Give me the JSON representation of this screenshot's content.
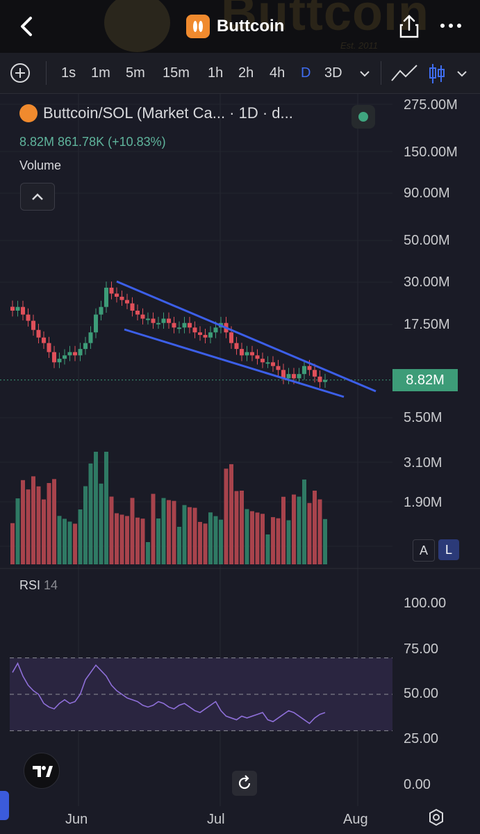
{
  "header": {
    "title": "Buttcoin",
    "watermark": "Buttcoin",
    "watermark_sub": "Est. 2011",
    "icons": [
      "back-arrow-icon",
      "token-icon",
      "share-icon",
      "more-dots-icon"
    ]
  },
  "toolbar": {
    "intervals": [
      "1s",
      "1m",
      "5m",
      "15m",
      "1h",
      "2h",
      "4h",
      "D",
      "3D"
    ],
    "active_interval": "D"
  },
  "legend": {
    "symbol": "Buttcoin/SOL (Market Ca... · 1D · d...",
    "ohlc": "8.82M  861.78K (+10.83%)",
    "volume_label": "Volume"
  },
  "price_axis": [
    "275.00M",
    "150.00M",
    "90.00M",
    "50.00M",
    "30.00M",
    "17.50M",
    "5.50M",
    "3.10M",
    "1.90M"
  ],
  "current_price": "8.82M",
  "scale_buttons": {
    "auto": "A",
    "log": "L"
  },
  "rsi": {
    "label": "RSI",
    "period": "14",
    "axis": [
      "100.00",
      "75.00",
      "50.00",
      "25.00",
      "0.00"
    ]
  },
  "time_axis": [
    "Jun",
    "Jul",
    "Aug"
  ],
  "colors": {
    "up": "#3d9c78",
    "down": "#e0505a",
    "trendline": "#3c5fe8",
    "rsi_line": "#8e6fd8",
    "rsi_band": "#2a2540",
    "active": "#3f6df0"
  },
  "chart_data": {
    "type": "candlestick",
    "title": "Buttcoin/SOL (Market Ca...",
    "y_scale": "log",
    "y_ticks": [
      "275.00M",
      "150.00M",
      "90.00M",
      "50.00M",
      "30.00M",
      "17.50M",
      "5.50M",
      "3.10M",
      "1.90M"
    ],
    "x_ticks": [
      "Jun",
      "Jul",
      "Aug"
    ],
    "last_value": "8.82M",
    "change": "861.78K (+10.83%)",
    "approx_close_series_M": [
      21,
      22,
      20,
      18.5,
      16.5,
      15,
      14,
      12.5,
      11,
      11.5,
      12,
      12.5,
      12,
      13,
      14,
      16,
      20,
      22,
      28,
      26,
      25,
      24,
      23,
      21,
      20,
      19,
      19,
      18,
      18,
      19,
      18,
      17,
      17,
      18,
      17,
      16,
      15.5,
      15,
      16,
      17,
      18,
      16,
      14,
      13,
      12,
      12.5,
      12,
      11.5,
      11,
      11,
      10.5,
      10,
      9,
      9.5,
      9,
      9.5,
      10.5,
      10,
      9.2,
      8.6,
      8.82
    ],
    "rsi_values": [
      62,
      67,
      60,
      55,
      52,
      50,
      45,
      43,
      42,
      45,
      47,
      45,
      46,
      50,
      58,
      62,
      66,
      63,
      60,
      55,
      52,
      50,
      48,
      47,
      46,
      44,
      43,
      44,
      46,
      45,
      43,
      42,
      44,
      45,
      43,
      41,
      40,
      42,
      44,
      46,
      41,
      38,
      37,
      36,
      38,
      37,
      38,
      39,
      40,
      36,
      35,
      37,
      39,
      41,
      40,
      38,
      36,
      34,
      37,
      39,
      40
    ]
  }
}
